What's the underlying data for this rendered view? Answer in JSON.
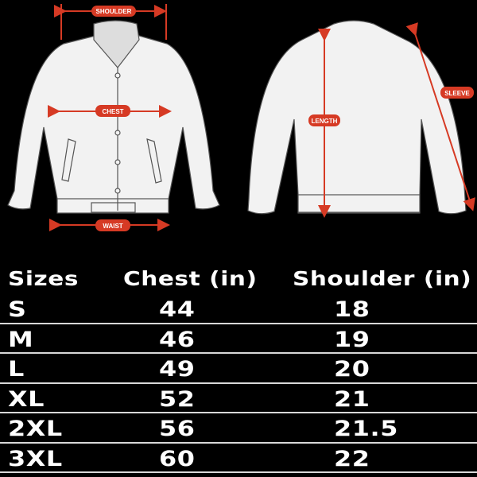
{
  "diagram": {
    "front_labels": {
      "shoulder": "SHOULDER",
      "chest": "CHEST",
      "waist": "WAIST"
    },
    "back_labels": {
      "length": "LENGTH",
      "sleeve": "SLEEVE"
    },
    "accent_color": "#d63a24",
    "garment_color": "#f2f2f2"
  },
  "table": {
    "headers": [
      "Sizes",
      "Chest (in)",
      "Shoulder (in)"
    ],
    "rows": [
      {
        "size": "S",
        "chest": "44",
        "shoulder": "18"
      },
      {
        "size": "M",
        "chest": "46",
        "shoulder": "19"
      },
      {
        "size": "L",
        "chest": "49",
        "shoulder": "20"
      },
      {
        "size": "XL",
        "chest": "52",
        "shoulder": "21"
      },
      {
        "size": "2XL",
        "chest": "56",
        "shoulder": "21.5"
      },
      {
        "size": "3XL",
        "chest": "60",
        "shoulder": "22"
      }
    ]
  }
}
